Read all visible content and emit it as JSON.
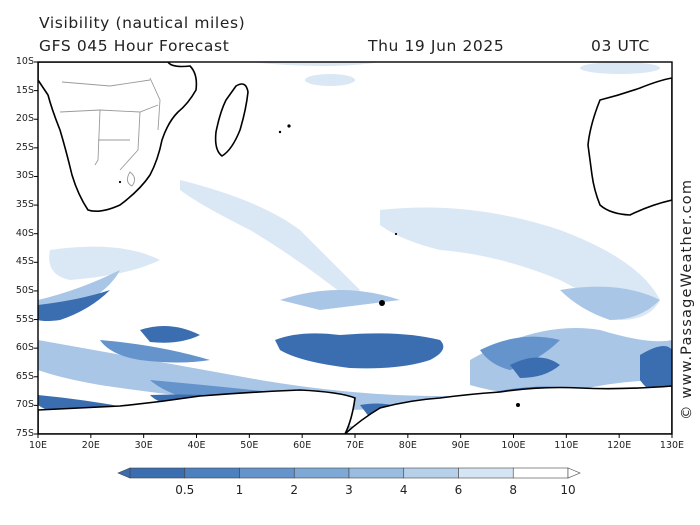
{
  "header": {
    "title": "Visibility (nautical miles)",
    "model": "GFS 045 Hour Forecast",
    "date": "Thu 19 Jun 2025",
    "time": "03 UTC"
  },
  "axes": {
    "lat_labels": [
      "10S",
      "15S",
      "20S",
      "25S",
      "30S",
      "35S",
      "40S",
      "45S",
      "50S",
      "55S",
      "60S",
      "65S",
      "70S",
      "75S"
    ],
    "lon_labels": [
      "10E",
      "20E",
      "30E",
      "40E",
      "50E",
      "60E",
      "70E",
      "80E",
      "90E",
      "100E",
      "110E",
      "120E",
      "130E"
    ]
  },
  "colorbar": {
    "labels": [
      "0.5",
      "1",
      "2",
      "3",
      "4",
      "6",
      "8",
      "10"
    ],
    "colors": [
      "#3a6eb0",
      "#4d80bf",
      "#6494cb",
      "#7ea8d6",
      "#99bce0",
      "#b7d0ea",
      "#d6e5f4",
      "#ffffff"
    ]
  },
  "copyright": "© www.PassageWeather.com",
  "colors": {
    "deep": "#3a6eb0",
    "mid": "#6494cb",
    "light": "#a9c6e6",
    "pale": "#d4e3f3",
    "land": "#ffffff",
    "coast": "#000000",
    "border": "#9a9a9a"
  }
}
